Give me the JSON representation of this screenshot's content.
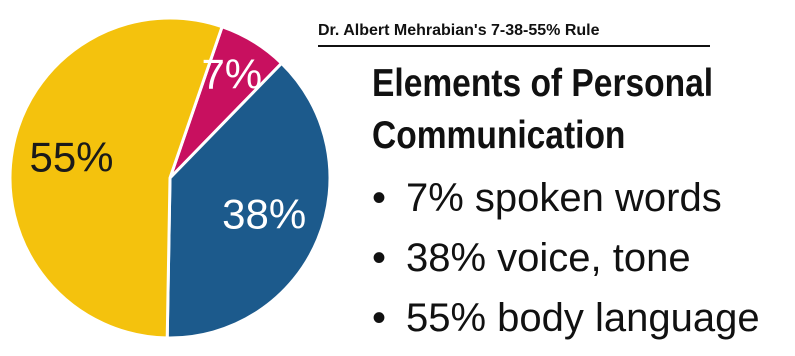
{
  "chart_data": {
    "type": "pie",
    "subtitle": "Dr. Albert Mehrabian's 7-38-55% Rule",
    "title_lines": [
      "Elements of Personal",
      "Communication"
    ],
    "slices": [
      {
        "label": "7%",
        "value": 7,
        "color": "#c8105f",
        "text_color": "#ffffff"
      },
      {
        "label": "38%",
        "value": 38,
        "color": "#1c5a8c",
        "text_color": "#ffffff"
      },
      {
        "label": "55%",
        "value": 55,
        "color": "#f4c20d",
        "text_color": "#1a1a1a"
      }
    ],
    "bullets": [
      "7% spoken words",
      "38% voice, tone",
      "55% body language"
    ]
  }
}
